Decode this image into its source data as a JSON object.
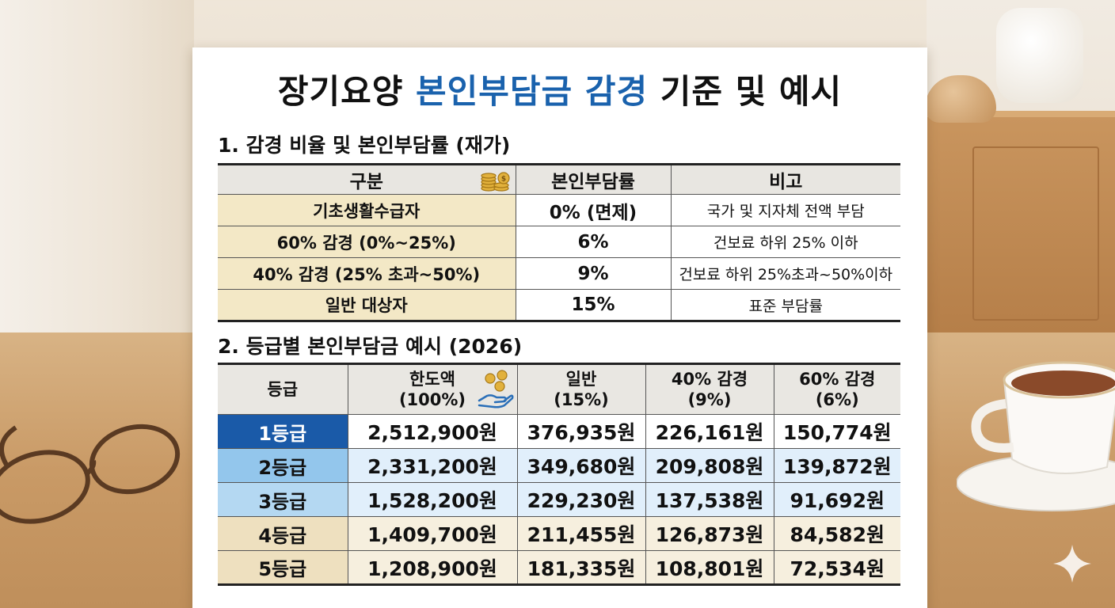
{
  "title": {
    "prefix": "장기요양",
    "accent": "본인부담금 감경",
    "suffix": "기준 및 예시",
    "accent_color": "#1a62ad"
  },
  "section1": {
    "heading": "1. 감경 비율 및 본인부담률 (재가)",
    "headers": [
      "구분",
      "본인부담률",
      "비고"
    ],
    "header_icon": "coin-stack-icon",
    "rows": [
      {
        "category": "기초생활수급자",
        "rate": "0% (면제)",
        "note": "국가 및 지자체 전액 부담"
      },
      {
        "category": "60% 감경 (0%~25%)",
        "rate": "6%",
        "note": "건보료 하위 25% 이하"
      },
      {
        "category": "40% 감경 (25% 초과~50%)",
        "rate": "9%",
        "note": "건보료 하위 25%초과~50%이하"
      },
      {
        "category": "일반 대상자",
        "rate": "15%",
        "note": "표준 부담률"
      }
    ]
  },
  "section2": {
    "heading": "2. 등급별 본인부담금 예시 (2026)",
    "headers": {
      "grade": "등급",
      "limit_line1": "한도액",
      "limit_line2": "(100%)",
      "general_line1": "일반",
      "general_line2": "(15%)",
      "reduce40_line1": "40% 감경",
      "reduce40_line2": "(9%)",
      "reduce60_line1": "60% 감경",
      "reduce60_line2": "(6%)"
    },
    "header_icon": "hand-coins-icon",
    "rows": [
      {
        "grade": "1등급",
        "limit": "2,512,900원",
        "general": "376,935원",
        "reduce40": "226,161원",
        "reduce60": "150,774원"
      },
      {
        "grade": "2등급",
        "limit": "2,331,200원",
        "general": "349,680원",
        "reduce40": "209,808원",
        "reduce60": "139,872원"
      },
      {
        "grade": "3등급",
        "limit": "1,528,200원",
        "general": "229,230원",
        "reduce40": "137,538원",
        "reduce60": "91,692원"
      },
      {
        "grade": "4등급",
        "limit": "1,409,700원",
        "general": "211,455원",
        "reduce40": "126,873원",
        "reduce60": "84,582원"
      },
      {
        "grade": "5등급",
        "limit": "1,208,900원",
        "general": "181,335원",
        "reduce40": "108,801원",
        "reduce60": "72,534원"
      }
    ]
  },
  "decor": {
    "glasses_icon": "eyeglasses-icon",
    "cup_icon": "teacup-icon",
    "sparkle_icon": "sparkle-icon"
  }
}
